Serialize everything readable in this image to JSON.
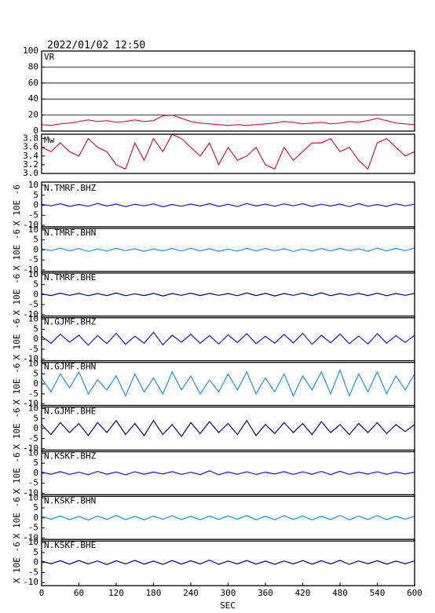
{
  "chart_data": {
    "type": "multi-panel",
    "title": "2022/01/02 12:50",
    "xlabel": "SEC",
    "xlim": [
      0,
      600
    ],
    "xticks": [
      0,
      60,
      120,
      180,
      240,
      300,
      360,
      420,
      480,
      540,
      600
    ],
    "x": [
      0,
      15,
      30,
      45,
      60,
      75,
      90,
      105,
      120,
      135,
      150,
      165,
      180,
      195,
      210,
      225,
      240,
      255,
      270,
      285,
      300,
      315,
      330,
      345,
      360,
      375,
      390,
      405,
      420,
      435,
      450,
      465,
      480,
      495,
      510,
      525,
      540,
      555,
      570,
      585,
      600
    ],
    "panels": [
      {
        "label": "VR",
        "ylim": [
          0,
          100
        ],
        "yticks": [
          0,
          20,
          40,
          60,
          80,
          100
        ],
        "grid": true,
        "series": [
          {
            "color": "#dc143c",
            "values": [
              8,
              7,
              9,
              10,
              12,
              14,
              12,
              13,
              11,
              12,
              14,
              12,
              13,
              19,
              20,
              16,
              12,
              10,
              9,
              8,
              7,
              8,
              7,
              8,
              9,
              10,
              12,
              11,
              9,
              10,
              11,
              9,
              10,
              12,
              11,
              13,
              16,
              13,
              10,
              9,
              8
            ]
          }
        ]
      },
      {
        "label": "Mw",
        "ylim": [
          3.0,
          3.9
        ],
        "yticks": [
          {
            "value": 3.0,
            "label": "3.0"
          },
          3.2,
          3.4,
          3.6,
          3.8
        ],
        "grid": false,
        "series": [
          {
            "color": "#dc143c",
            "values": [
              3.6,
              3.5,
              3.7,
              3.5,
              3.4,
              3.8,
              3.6,
              3.5,
              3.2,
              3.1,
              3.7,
              3.3,
              3.8,
              3.5,
              3.9,
              3.8,
              3.6,
              3.4,
              3.7,
              3.2,
              3.6,
              3.3,
              3.4,
              3.6,
              3.2,
              3.1,
              3.6,
              3.3,
              3.5,
              3.7,
              3.7,
              3.8,
              3.5,
              3.6,
              3.3,
              3.1,
              3.7,
              3.8,
              3.6,
              3.4,
              3.5
            ]
          }
        ]
      },
      {
        "label": "N.TMRF.BHZ",
        "ylabel": "X 10E -6",
        "ylim": [
          -10,
          10
        ],
        "yticks": [
          -10,
          -5,
          0,
          5,
          10
        ],
        "grid": false,
        "series": [
          {
            "color": "#1414e6",
            "values": [
              0.5,
              -0.3,
              0.8,
              -0.6,
              0.4,
              -0.5,
              0.9,
              -0.4,
              0.6,
              -0.7,
              0.5,
              -0.3,
              0.7,
              -0.8,
              0.4,
              -0.5,
              0.6,
              -0.4,
              0.8,
              -0.6,
              0.5,
              -0.7,
              0.9,
              -0.4,
              0.6,
              -0.5,
              0.7,
              -0.3,
              0.8,
              -0.6,
              0.5,
              -0.4,
              0.6,
              -0.7,
              0.8,
              -0.5,
              0.4,
              -0.6,
              0.7,
              -0.3,
              0.5
            ]
          }
        ]
      },
      {
        "label": "N.TMRF.BHN",
        "ylabel": "X 10E -6",
        "ylim": [
          -10,
          10
        ],
        "yticks": [
          -10,
          -5,
          0,
          5,
          10
        ],
        "grid": false,
        "series": [
          {
            "color": "#1e90ff",
            "values": [
              0.6,
              -0.4,
              0.9,
              -0.5,
              0.7,
              -0.8,
              0.5,
              -0.6,
              0.8,
              -0.4,
              0.6,
              -0.7,
              0.5,
              -0.5,
              0.7,
              -0.6,
              0.9,
              -0.5,
              0.6,
              -0.7,
              0.4,
              -0.6,
              0.8,
              -0.5,
              0.7,
              -0.4,
              0.6,
              -0.8,
              0.5,
              -0.6,
              0.7,
              -0.5,
              0.8,
              -0.4,
              0.6,
              -0.7,
              0.9,
              -0.5,
              0.8,
              -0.4,
              1.0
            ]
          }
        ]
      },
      {
        "label": "N.TMRF.BHE",
        "ylabel": "X 10E -6",
        "ylim": [
          -10,
          10
        ],
        "yticks": [
          -10,
          -5,
          0,
          5,
          10
        ],
        "grid": false,
        "series": [
          {
            "color": "#000080",
            "values": [
              0.4,
              -0.5,
              0.7,
              -0.4,
              0.6,
              -0.6,
              0.5,
              -0.5,
              0.8,
              -0.6,
              0.4,
              -0.5,
              0.6,
              -0.7,
              0.5,
              -0.4,
              0.7,
              -0.5,
              0.6,
              -0.4,
              0.5,
              -0.6,
              0.8,
              -0.5,
              0.6,
              -0.7,
              0.5,
              -0.4,
              0.7,
              -0.5,
              0.9,
              -0.6,
              0.5,
              -0.4,
              0.6,
              -0.5,
              0.7,
              -0.6,
              0.5,
              -0.4,
              0.6
            ]
          }
        ]
      },
      {
        "label": "N.GJMF.BHZ",
        "ylabel": "X 10E -6",
        "ylim": [
          -10,
          10
        ],
        "yticks": [
          -10,
          -5,
          0,
          5,
          10
        ],
        "grid": false,
        "series": [
          {
            "color": "#1414e6",
            "values": [
              1.5,
              -2,
              2.5,
              -1.5,
              2,
              -3,
              1.8,
              -2.2,
              3,
              -2.5,
              1.5,
              -2,
              3.5,
              -2.8,
              2,
              -1.5,
              2.5,
              -2,
              1.8,
              -2.4,
              2.2,
              -1.6,
              2.8,
              -2.2,
              1.5,
              -2,
              2.4,
              -1.8,
              3,
              -2.6,
              2,
              -1.8,
              2.6,
              -2.2,
              1.6,
              -2.4,
              2.8,
              -2,
              1.8,
              -1.6,
              2
            ]
          }
        ]
      },
      {
        "label": "N.GJMF.BHN",
        "ylabel": "X 10E -6",
        "ylim": [
          -10,
          10
        ],
        "yticks": [
          -10,
          -5,
          0,
          5,
          10
        ],
        "grid": false,
        "series": [
          {
            "color": "#1e90ff",
            "values": [
              3,
              -4,
              5,
              -2,
              6,
              -5,
              2,
              -3,
              4,
              -6,
              5,
              -4,
              3,
              -5,
              6,
              -3,
              4,
              -5,
              2,
              -4,
              5,
              -3,
              6,
              -5,
              3,
              -4,
              5,
              -6,
              4,
              -3,
              6,
              -5,
              7,
              -6,
              5,
              -4,
              6,
              -5,
              4,
              -3,
              5
            ]
          }
        ]
      },
      {
        "label": "N.GJMF.BHE",
        "ylabel": "X 10E -6",
        "ylim": [
          -10,
          10
        ],
        "yticks": [
          -10,
          -5,
          0,
          5,
          10
        ],
        "grid": false,
        "series": [
          {
            "color": "#000080",
            "values": [
              2,
              -3,
              3,
              -2,
              2.5,
              -3.5,
              3,
              -2,
              4,
              -3,
              2.5,
              -3.5,
              4,
              -3,
              2,
              -4,
              3,
              -2.5,
              3.5,
              -2,
              2.5,
              -3,
              4,
              -3.5,
              2,
              -2.5,
              3,
              -2,
              2.5,
              -3,
              3.5,
              -2,
              2,
              -3,
              2.5,
              -2,
              3,
              -2.5,
              2,
              -1.5,
              2
            ]
          }
        ]
      },
      {
        "label": "N.KSKF.BHZ",
        "ylabel": "X 10E -6",
        "ylim": [
          -10,
          10
        ],
        "yticks": [
          -10,
          -5,
          0,
          5,
          10
        ],
        "grid": false,
        "series": [
          {
            "color": "#1414e6",
            "values": [
              0.6,
              -0.5,
              0.8,
              -0.6,
              0.5,
              -0.7,
              0.9,
              -0.5,
              0.6,
              -0.8,
              0.7,
              -0.5,
              0.6,
              -0.4,
              0.8,
              -0.6,
              0.5,
              -0.7,
              1.2,
              -0.8,
              0.6,
              -0.5,
              0.7,
              -0.6,
              0.5,
              -0.4,
              0.8,
              -0.6,
              0.7,
              -0.5,
              0.9,
              -0.7,
              1.0,
              -0.6,
              0.5,
              -0.4,
              0.7,
              -0.5,
              0.6,
              -0.4,
              0.5
            ]
          }
        ]
      },
      {
        "label": "N.KSKF.BHN",
        "ylabel": "X 10E -6",
        "ylim": [
          -10,
          10
        ],
        "yticks": [
          -10,
          -5,
          0,
          5,
          10
        ],
        "grid": false,
        "series": [
          {
            "color": "#1e90ff",
            "values": [
              0.8,
              -0.7,
              1.0,
              -0.9,
              0.7,
              -1.1,
              0.9,
              -0.8,
              1.2,
              -0.9,
              0.8,
              -1.0,
              0.9,
              -0.7,
              1.1,
              -0.9,
              0.8,
              -1.0,
              0.9,
              -0.8,
              1.0,
              -0.7,
              1.2,
              -1.0,
              0.8,
              -0.9,
              1.1,
              -0.8,
              0.9,
              -1.0,
              0.8,
              -0.9,
              1.3,
              -1.0,
              0.9,
              -0.8,
              1.1,
              -0.9,
              0.8,
              -0.7,
              0.9
            ]
          }
        ]
      },
      {
        "label": "N.KSKF.BHE",
        "ylabel": "X 10E -6",
        "ylim": [
          -10,
          10
        ],
        "yticks": [
          -10,
          -5,
          0,
          5,
          10
        ],
        "grid": false,
        "series": [
          {
            "color": "#000080",
            "values": [
              0.7,
              -0.6,
              0.9,
              -0.8,
              1.0,
              -0.7,
              0.8,
              -1.0,
              0.9,
              -0.7,
              1.1,
              -0.8,
              0.7,
              -0.9,
              1.0,
              -0.8,
              0.9,
              -0.7,
              1.2,
              -0.9,
              0.8,
              -0.7,
              1.0,
              -0.8,
              0.7,
              -0.9,
              0.8,
              -0.7,
              1.0,
              -0.8,
              0.9,
              -0.7,
              1.1,
              -0.9,
              0.8,
              -0.6,
              0.9,
              -0.8,
              0.7,
              -0.6,
              0.8
            ]
          }
        ]
      }
    ]
  }
}
